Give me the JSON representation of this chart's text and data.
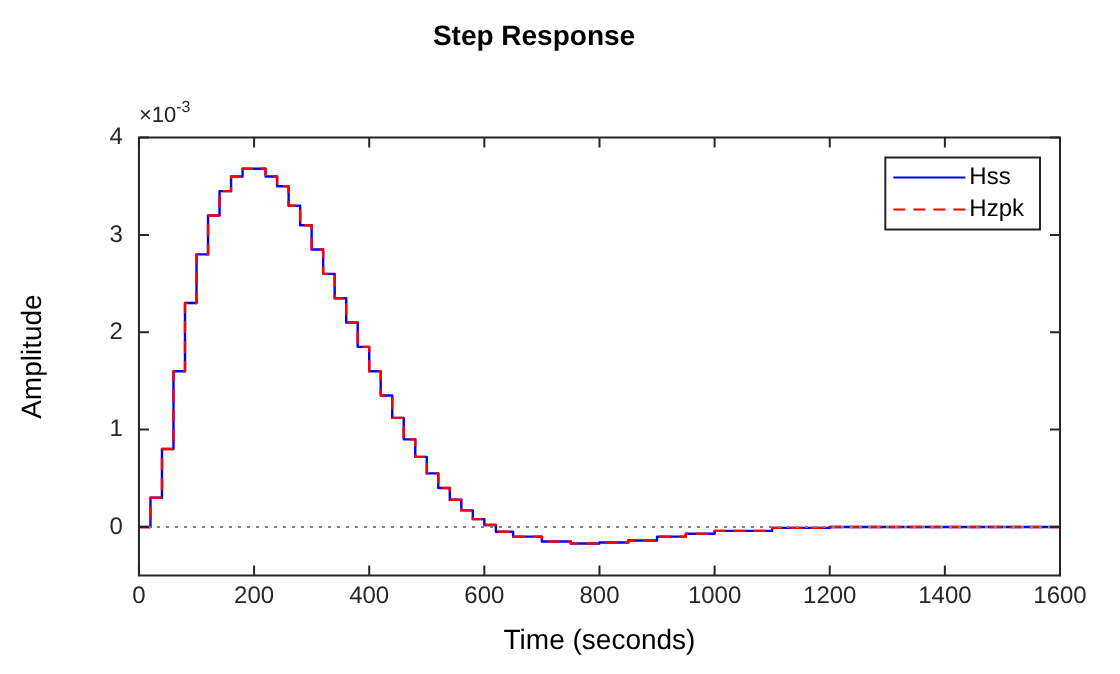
{
  "chart_data": {
    "type": "step",
    "title": "Step Response",
    "xlabel": "Time (seconds)",
    "ylabel": "Amplitude",
    "annotations": [
      "×10$^{-3}$"
    ],
    "x": [
      0,
      20,
      40,
      60,
      80,
      100,
      120,
      140,
      160,
      180,
      200,
      220,
      240,
      260,
      280,
      300,
      320,
      340,
      360,
      380,
      400,
      420,
      440,
      460,
      480,
      500,
      520,
      540,
      560,
      580,
      600,
      620,
      650,
      700,
      750,
      800,
      850,
      900,
      950,
      1000,
      1100,
      1200,
      1300,
      1400,
      1500,
      1600
    ],
    "series": [
      {
        "name": "Hss",
        "color": "#0000ff",
        "line_style": "solid",
        "values": [
          0,
          0.3,
          0.8,
          1.6,
          2.3,
          2.8,
          3.2,
          3.45,
          3.6,
          3.68,
          3.68,
          3.6,
          3.5,
          3.3,
          3.1,
          2.85,
          2.6,
          2.35,
          2.1,
          1.85,
          1.6,
          1.35,
          1.12,
          0.9,
          0.72,
          0.55,
          0.4,
          0.28,
          0.17,
          0.08,
          0.02,
          -0.05,
          -0.1,
          -0.15,
          -0.17,
          -0.16,
          -0.14,
          -0.1,
          -0.07,
          -0.04,
          -0.01,
          0,
          0,
          0,
          0,
          0
        ]
      },
      {
        "name": "Hzpk",
        "color": "#ff0000",
        "line_style": "dashed",
        "values": [
          0,
          0.3,
          0.8,
          1.6,
          2.3,
          2.8,
          3.2,
          3.45,
          3.6,
          3.68,
          3.68,
          3.6,
          3.5,
          3.3,
          3.1,
          2.85,
          2.6,
          2.35,
          2.1,
          1.85,
          1.6,
          1.35,
          1.12,
          0.9,
          0.72,
          0.55,
          0.4,
          0.28,
          0.17,
          0.08,
          0.02,
          -0.05,
          -0.1,
          -0.15,
          -0.17,
          -0.16,
          -0.14,
          -0.1,
          -0.07,
          -0.04,
          -0.01,
          0,
          0,
          0,
          0,
          0
        ]
      }
    ],
    "xlim": [
      0,
      1600
    ],
    "xticks": [
      0,
      200,
      400,
      600,
      800,
      1000,
      1200,
      1400,
      1600
    ],
    "ylim": [
      -0.5,
      4
    ],
    "yticks": [
      0,
      1,
      2,
      3,
      4
    ],
    "ref_lines": [
      {
        "axis": "y",
        "value": 0,
        "color": "#808080",
        "line_style": "dotted"
      }
    ],
    "grid": false,
    "legend": "top right",
    "marker": "none"
  }
}
